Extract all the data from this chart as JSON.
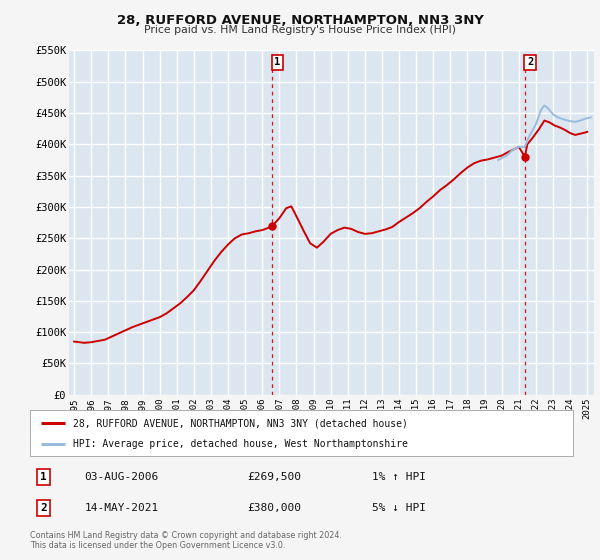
{
  "title": "28, RUFFORD AVENUE, NORTHAMPTON, NN3 3NY",
  "subtitle": "Price paid vs. HM Land Registry's House Price Index (HPI)",
  "bg_color": "#f5f5f5",
  "plot_bg_color": "#dce6f0",
  "grid_color": "#ffffff",
  "red_line_color": "#cc0000",
  "blue_line_color": "#99bbdd",
  "ylim": [
    0,
    550000
  ],
  "yticks": [
    0,
    50000,
    100000,
    150000,
    200000,
    250000,
    300000,
    350000,
    400000,
    450000,
    500000,
    550000
  ],
  "ytick_labels": [
    "£0",
    "£50K",
    "£100K",
    "£150K",
    "£200K",
    "£250K",
    "£300K",
    "£350K",
    "£400K",
    "£450K",
    "£500K",
    "£550K"
  ],
  "xlim_start": 1994.7,
  "xlim_end": 2025.4,
  "marker1_x": 2006.58,
  "marker1_y": 269500,
  "marker2_x": 2021.36,
  "marker2_y": 380000,
  "vline1_x": 2006.58,
  "vline2_x": 2021.36,
  "legend_label_red": "28, RUFFORD AVENUE, NORTHAMPTON, NN3 3NY (detached house)",
  "legend_label_blue": "HPI: Average price, detached house, West Northamptonshire",
  "annotation1_num": "1",
  "annotation1_date": "03-AUG-2006",
  "annotation1_price": "£269,500",
  "annotation1_hpi": "1% ↑ HPI",
  "annotation2_num": "2",
  "annotation2_date": "14-MAY-2021",
  "annotation2_price": "£380,000",
  "annotation2_hpi": "5% ↓ HPI",
  "footer": "Contains HM Land Registry data © Crown copyright and database right 2024.\nThis data is licensed under the Open Government Licence v3.0.",
  "red_hpi_data": [
    [
      1995.0,
      85000
    ],
    [
      1995.3,
      84000
    ],
    [
      1995.6,
      83000
    ],
    [
      1996.0,
      84000
    ],
    [
      1996.4,
      86000
    ],
    [
      1996.8,
      88000
    ],
    [
      1997.2,
      93000
    ],
    [
      1997.6,
      98000
    ],
    [
      1998.0,
      103000
    ],
    [
      1998.4,
      108000
    ],
    [
      1998.8,
      112000
    ],
    [
      1999.2,
      116000
    ],
    [
      1999.6,
      120000
    ],
    [
      2000.0,
      124000
    ],
    [
      2000.4,
      130000
    ],
    [
      2000.8,
      138000
    ],
    [
      2001.2,
      146000
    ],
    [
      2001.6,
      156000
    ],
    [
      2002.0,
      167000
    ],
    [
      2002.4,
      182000
    ],
    [
      2002.8,
      198000
    ],
    [
      2003.2,
      214000
    ],
    [
      2003.6,
      228000
    ],
    [
      2004.0,
      240000
    ],
    [
      2004.4,
      250000
    ],
    [
      2004.8,
      256000
    ],
    [
      2005.2,
      258000
    ],
    [
      2005.6,
      261000
    ],
    [
      2006.0,
      263000
    ],
    [
      2006.4,
      267000
    ],
    [
      2006.58,
      269500
    ],
    [
      2007.0,
      282000
    ],
    [
      2007.4,
      298000
    ],
    [
      2007.7,
      301000
    ],
    [
      2008.0,
      285000
    ],
    [
      2008.4,
      263000
    ],
    [
      2008.8,
      242000
    ],
    [
      2009.2,
      235000
    ],
    [
      2009.6,
      245000
    ],
    [
      2010.0,
      257000
    ],
    [
      2010.4,
      263000
    ],
    [
      2010.8,
      267000
    ],
    [
      2011.2,
      265000
    ],
    [
      2011.6,
      260000
    ],
    [
      2012.0,
      257000
    ],
    [
      2012.4,
      258000
    ],
    [
      2012.8,
      261000
    ],
    [
      2013.2,
      264000
    ],
    [
      2013.6,
      268000
    ],
    [
      2014.0,
      276000
    ],
    [
      2014.4,
      283000
    ],
    [
      2014.8,
      290000
    ],
    [
      2015.2,
      298000
    ],
    [
      2015.6,
      308000
    ],
    [
      2016.0,
      317000
    ],
    [
      2016.4,
      327000
    ],
    [
      2016.8,
      335000
    ],
    [
      2017.2,
      344000
    ],
    [
      2017.6,
      354000
    ],
    [
      2018.0,
      363000
    ],
    [
      2018.4,
      370000
    ],
    [
      2018.8,
      374000
    ],
    [
      2019.2,
      376000
    ],
    [
      2019.6,
      379000
    ],
    [
      2020.0,
      382000
    ],
    [
      2020.4,
      388000
    ],
    [
      2020.8,
      393000
    ],
    [
      2021.0,
      396000
    ],
    [
      2021.36,
      380000
    ],
    [
      2021.5,
      400000
    ],
    [
      2021.8,
      410000
    ],
    [
      2022.2,
      425000
    ],
    [
      2022.5,
      438000
    ],
    [
      2022.8,
      435000
    ],
    [
      2023.1,
      430000
    ],
    [
      2023.4,
      427000
    ],
    [
      2023.7,
      423000
    ],
    [
      2024.0,
      418000
    ],
    [
      2024.3,
      415000
    ],
    [
      2024.6,
      417000
    ],
    [
      2024.9,
      419000
    ],
    [
      2025.0,
      420000
    ]
  ],
  "blue_hpi_data": [
    [
      2019.8,
      375000
    ],
    [
      2020.0,
      378000
    ],
    [
      2020.3,
      382000
    ],
    [
      2020.6,
      390000
    ],
    [
      2021.0,
      396000
    ],
    [
      2021.36,
      396000
    ],
    [
      2021.6,
      412000
    ],
    [
      2022.0,
      432000
    ],
    [
      2022.3,
      455000
    ],
    [
      2022.5,
      462000
    ],
    [
      2022.7,
      458000
    ],
    [
      2023.0,
      448000
    ],
    [
      2023.3,
      443000
    ],
    [
      2023.6,
      440000
    ],
    [
      2024.0,
      437000
    ],
    [
      2024.3,
      436000
    ],
    [
      2024.6,
      438000
    ],
    [
      2024.9,
      441000
    ],
    [
      2025.2,
      443000
    ]
  ]
}
